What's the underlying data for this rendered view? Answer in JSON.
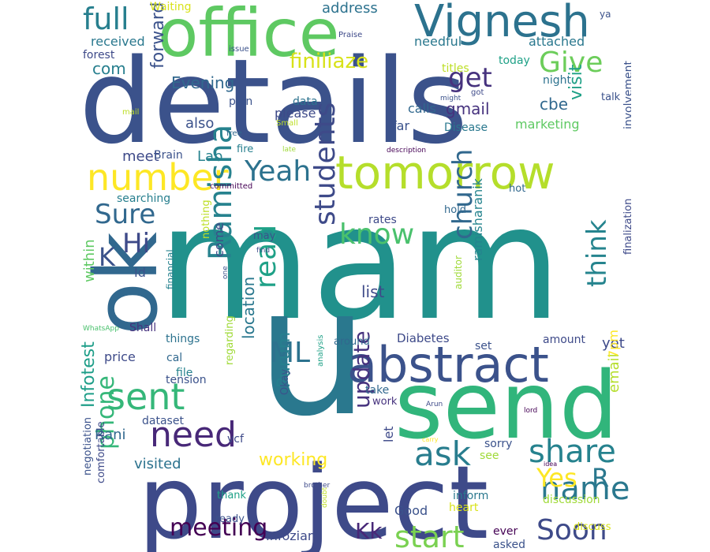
{
  "palette": [
    "#440154",
    "#46327e",
    "#365c8d",
    "#277f8e",
    "#1fa187",
    "#4ac16d",
    "#a0da39",
    "#fde725"
  ],
  "words": [
    {
      "text": "mam",
      "color": "#21918c"
    },
    {
      "text": "details",
      "color": "#3b528b"
    },
    {
      "text": "project",
      "color": "#3e4a89"
    },
    {
      "text": "u",
      "color": "#2a788e"
    },
    {
      "text": "send",
      "color": "#31b57b"
    },
    {
      "text": "office",
      "color": "#5ec962"
    },
    {
      "text": "ok",
      "color": "#31688e"
    },
    {
      "text": "tomorrow",
      "color": "#b5de2b"
    },
    {
      "text": "abstract",
      "color": "#3b528b"
    },
    {
      "text": "Vignesh",
      "color": "#2c728e"
    },
    {
      "text": "number",
      "color": "#fde725"
    },
    {
      "text": "sent",
      "color": "#35b779"
    },
    {
      "text": "need",
      "color": "#482878"
    },
    {
      "text": "ask",
      "color": "#287d8e"
    },
    {
      "text": "students",
      "color": "#3e4a89"
    },
    {
      "text": "Ramisha",
      "color": "#26828e"
    },
    {
      "text": "share",
      "color": "#26828e"
    },
    {
      "text": "name",
      "color": "#2a788e"
    },
    {
      "text": "Soon",
      "color": "#3e4a89"
    },
    {
      "text": "start",
      "color": "#7ad151"
    },
    {
      "text": "meeting",
      "color": "#440154"
    },
    {
      "text": "know",
      "color": "#4ac16d"
    },
    {
      "text": "read",
      "color": "#1fa187"
    },
    {
      "text": "church",
      "color": "#31688e"
    },
    {
      "text": "think",
      "color": "#25848e"
    },
    {
      "text": "full",
      "color": "#277f8e"
    },
    {
      "text": "Yeah",
      "color": "#2c728e"
    },
    {
      "text": "Give",
      "color": "#6ccd5a"
    },
    {
      "text": "Hi",
      "color": "#3e4a89"
    },
    {
      "text": "K",
      "color": "#3b528b"
    },
    {
      "text": "Sure",
      "color": "#31688e"
    },
    {
      "text": "get",
      "color": "#46327e"
    },
    {
      "text": "finiliaze",
      "color": "#d8e219"
    },
    {
      "text": "ML",
      "color": "#2c728e"
    },
    {
      "text": "Yes",
      "color": "#fde725"
    },
    {
      "text": "R",
      "color": "#2a788e"
    },
    {
      "text": "phone",
      "color": "#35b779"
    },
    {
      "text": "update",
      "color": "#46327e"
    },
    {
      "text": "Kk",
      "color": "#482878"
    },
    {
      "text": "Purum",
      "color": "#277f8e"
    },
    {
      "text": "Infotest",
      "color": "#1f9e89"
    },
    {
      "text": "working",
      "color": "#fde725"
    },
    {
      "text": "visit",
      "color": "#1fa187"
    },
    {
      "text": "address",
      "color": "#2c728e"
    },
    {
      "text": "Evening",
      "color": "#31688e"
    },
    {
      "text": "forward",
      "color": "#3b528b"
    },
    {
      "text": "gmail",
      "color": "#46327e"
    },
    {
      "text": "cbe",
      "color": "#31688e"
    },
    {
      "text": "location",
      "color": "#2a788e"
    },
    {
      "text": "com",
      "color": "#277f8e"
    },
    {
      "text": "also",
      "color": "#3b528b"
    },
    {
      "text": "meet",
      "color": "#3e4a89"
    },
    {
      "text": "Lab",
      "color": "#26828e"
    },
    {
      "text": "list",
      "color": "#3e4a89"
    },
    {
      "text": "Rani",
      "color": "#31688e"
    },
    {
      "text": "visited",
      "color": "#2c728e"
    },
    {
      "text": "come",
      "color": "#3e4a89"
    },
    {
      "text": "within",
      "color": "#5ec962"
    },
    {
      "text": "Id",
      "color": "#3b528b"
    },
    {
      "text": "ramisharanik",
      "color": "#25848e"
    },
    {
      "text": "yet",
      "color": "#3e4a89"
    },
    {
      "text": "email",
      "color": "#b5de2b"
    },
    {
      "text": "7pm",
      "color": "#fde725"
    },
    {
      "text": "Good",
      "color": "#3b528b"
    },
    {
      "text": "received",
      "color": "#2a788e"
    },
    {
      "text": "forest",
      "color": "#3e4a89"
    },
    {
      "text": "Waiting",
      "color": "#d8e219"
    },
    {
      "text": "needful",
      "color": "#2a788e"
    },
    {
      "text": "attached",
      "color": "#2a788e"
    },
    {
      "text": "today",
      "color": "#1fa187"
    },
    {
      "text": "titles",
      "color": "#bddf26"
    },
    {
      "text": "night",
      "color": "#2c728e"
    },
    {
      "text": "plan",
      "color": "#3b528b"
    },
    {
      "text": "data",
      "color": "#2c728e"
    },
    {
      "text": "calls",
      "color": "#31688e"
    },
    {
      "text": "please",
      "color": "#3e4a89"
    },
    {
      "text": "far",
      "color": "#3b528b"
    },
    {
      "text": "Disease",
      "color": "#2a788e"
    },
    {
      "text": "marketing",
      "color": "#5ec962"
    },
    {
      "text": "talk",
      "color": "#3b528b"
    },
    {
      "text": "Brain",
      "color": "#3b528b"
    },
    {
      "text": "fire",
      "color": "#277f8e"
    },
    {
      "text": "searching",
      "color": "#277f8e"
    },
    {
      "text": "hot",
      "color": "#31688e"
    },
    {
      "text": "involvement",
      "color": "#3b528b"
    },
    {
      "text": "hold",
      "color": "#31688e"
    },
    {
      "text": "rates",
      "color": "#3e4a89"
    },
    {
      "text": "may",
      "color": "#3b528b"
    },
    {
      "text": "nothing",
      "color": "#bddf26"
    },
    {
      "text": "financial",
      "color": "#26828e"
    },
    {
      "text": "auditor",
      "color": "#a0da39"
    },
    {
      "text": "finalization",
      "color": "#3e4a89"
    },
    {
      "text": "Shall",
      "color": "#46327e"
    },
    {
      "text": "things",
      "color": "#2c728e"
    },
    {
      "text": "around",
      "color": "#31688e"
    },
    {
      "text": "Diabetes",
      "color": "#3e4a89"
    },
    {
      "text": "set",
      "color": "#3b528b"
    },
    {
      "text": "amount",
      "color": "#3e4a89"
    },
    {
      "text": "price",
      "color": "#3e4a89"
    },
    {
      "text": "cal",
      "color": "#31688e"
    },
    {
      "text": "file",
      "color": "#26828e"
    },
    {
      "text": "tension",
      "color": "#3b528b"
    },
    {
      "text": "regarding",
      "color": "#a0da39"
    },
    {
      "text": "Okay",
      "color": "#3b528b"
    },
    {
      "text": "take",
      "color": "#31688e"
    },
    {
      "text": "work",
      "color": "#46327e"
    },
    {
      "text": "let",
      "color": "#3e4a89"
    },
    {
      "text": "dataset",
      "color": "#3b528b"
    },
    {
      "text": "vcf",
      "color": "#3e4a89"
    },
    {
      "text": "sorry",
      "color": "#3b528b"
    },
    {
      "text": "see",
      "color": "#a0da39"
    },
    {
      "text": "negotiation",
      "color": "#3b528b"
    },
    {
      "text": "comfortable",
      "color": "#3e4a89"
    },
    {
      "text": "ready",
      "color": "#3b528b"
    },
    {
      "text": "thank",
      "color": "#1fa187"
    },
    {
      "text": "Infoziant",
      "color": "#3e4a89"
    },
    {
      "text": "inform",
      "color": "#2a788e"
    },
    {
      "text": "heart",
      "color": "#d8e219"
    },
    {
      "text": "discussion",
      "color": "#a0da39"
    },
    {
      "text": "discuss",
      "color": "#d8e219"
    },
    {
      "text": "ever",
      "color": "#440154"
    },
    {
      "text": "asked",
      "color": "#3b528b"
    },
    {
      "text": "ya",
      "color": "#3b528b"
    },
    {
      "text": "Praise",
      "color": "#3e4a89"
    },
    {
      "text": "issue",
      "color": "#3b528b"
    },
    {
      "text": "got",
      "color": "#3e4a89"
    },
    {
      "text": "might",
      "color": "#3b528b"
    },
    {
      "text": "mail",
      "color": "#bddf26"
    },
    {
      "text": "free",
      "color": "#31688e"
    },
    {
      "text": "Small",
      "color": "#bddf26"
    },
    {
      "text": "late",
      "color": "#a0da39"
    },
    {
      "text": "description",
      "color": "#440154"
    },
    {
      "text": "committed",
      "color": "#440154"
    },
    {
      "text": "find",
      "color": "#3e4a89"
    },
    {
      "text": "one",
      "color": "#3b528b"
    },
    {
      "text": "WhatsApp",
      "color": "#4ac16d"
    },
    {
      "text": "analysis",
      "color": "#1fa187"
    },
    {
      "text": "Arun",
      "color": "#3e4a89"
    },
    {
      "text": "lord",
      "color": "#440154"
    },
    {
      "text": "carry",
      "color": "#fde725"
    },
    {
      "text": "idea",
      "color": "#440154"
    },
    {
      "text": "brother",
      "color": "#3e4a89"
    },
    {
      "text": "doubt",
      "color": "#bddf26"
    }
  ]
}
